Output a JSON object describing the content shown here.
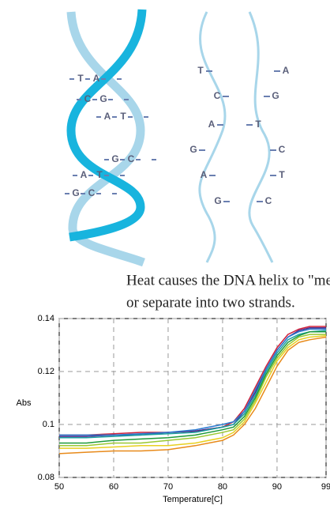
{
  "diagram": {
    "left_pairs": [
      [
        "T",
        "A"
      ],
      [
        "C",
        "G"
      ],
      [
        "A",
        "T"
      ],
      [
        "G",
        "C"
      ],
      [
        "A",
        "T"
      ],
      [
        "G",
        "C"
      ]
    ],
    "right_left_strand": [
      "T",
      "C",
      "A",
      "G",
      "A",
      "G"
    ],
    "right_right_strand": [
      "A",
      "G",
      "T",
      "C",
      "T",
      "C"
    ],
    "caption": [
      "Heat causes the DNA helix to \"melt\"",
      "or separate into two strands."
    ]
  },
  "chart_data": {
    "type": "line",
    "x_label": "Temperature[C]",
    "y_label": "Abs",
    "x": [
      50,
      55,
      60,
      65,
      70,
      75,
      80,
      82,
      84,
      86,
      88,
      90,
      92,
      94,
      96,
      99
    ],
    "xlim": [
      50,
      99
    ],
    "xticks": [
      50,
      60,
      70,
      80,
      90,
      99
    ],
    "ylim": [
      0.08,
      0.14
    ],
    "yticks": [
      0.08,
      0.1,
      0.12,
      0.14
    ],
    "grid": true,
    "series": [
      {
        "color": "#d0203a",
        "values": [
          0.096,
          0.096,
          0.0965,
          0.097,
          0.097,
          0.0975,
          0.099,
          0.101,
          0.106,
          0.114,
          0.122,
          0.129,
          0.134,
          0.136,
          0.137,
          0.137
        ]
      },
      {
        "color": "#4a2a8a",
        "values": [
          0.0955,
          0.0955,
          0.096,
          0.096,
          0.097,
          0.0975,
          0.099,
          0.1,
          0.105,
          0.112,
          0.121,
          0.128,
          0.133,
          0.1355,
          0.1365,
          0.1365
        ]
      },
      {
        "color": "#2a7ad0",
        "values": [
          0.096,
          0.096,
          0.096,
          0.0965,
          0.097,
          0.098,
          0.1,
          0.101,
          0.105,
          0.113,
          0.121,
          0.128,
          0.133,
          0.135,
          0.136,
          0.136
        ]
      },
      {
        "color": "#1aa0a0",
        "values": [
          0.095,
          0.095,
          0.0955,
          0.096,
          0.0965,
          0.097,
          0.099,
          0.1,
          0.104,
          0.111,
          0.12,
          0.127,
          0.132,
          0.134,
          0.135,
          0.1355
        ]
      },
      {
        "color": "#1e9a3a",
        "values": [
          0.093,
          0.093,
          0.094,
          0.0945,
          0.095,
          0.096,
          0.098,
          0.099,
          0.103,
          0.11,
          0.119,
          0.126,
          0.131,
          0.1335,
          0.135,
          0.135
        ]
      },
      {
        "color": "#9ac832",
        "values": [
          0.092,
          0.092,
          0.093,
          0.093,
          0.094,
          0.095,
          0.097,
          0.098,
          0.102,
          0.109,
          0.118,
          0.125,
          0.13,
          0.133,
          0.134,
          0.134
        ]
      },
      {
        "color": "#e8d020",
        "values": [
          0.091,
          0.091,
          0.0915,
          0.092,
          0.092,
          0.093,
          0.095,
          0.097,
          0.101,
          0.108,
          0.116,
          0.124,
          0.129,
          0.132,
          0.133,
          0.1335
        ]
      },
      {
        "color": "#e88a1a",
        "values": [
          0.089,
          0.0895,
          0.09,
          0.09,
          0.0905,
          0.092,
          0.094,
          0.096,
          0.1,
          0.106,
          0.114,
          0.122,
          0.128,
          0.131,
          0.132,
          0.133
        ]
      }
    ]
  }
}
